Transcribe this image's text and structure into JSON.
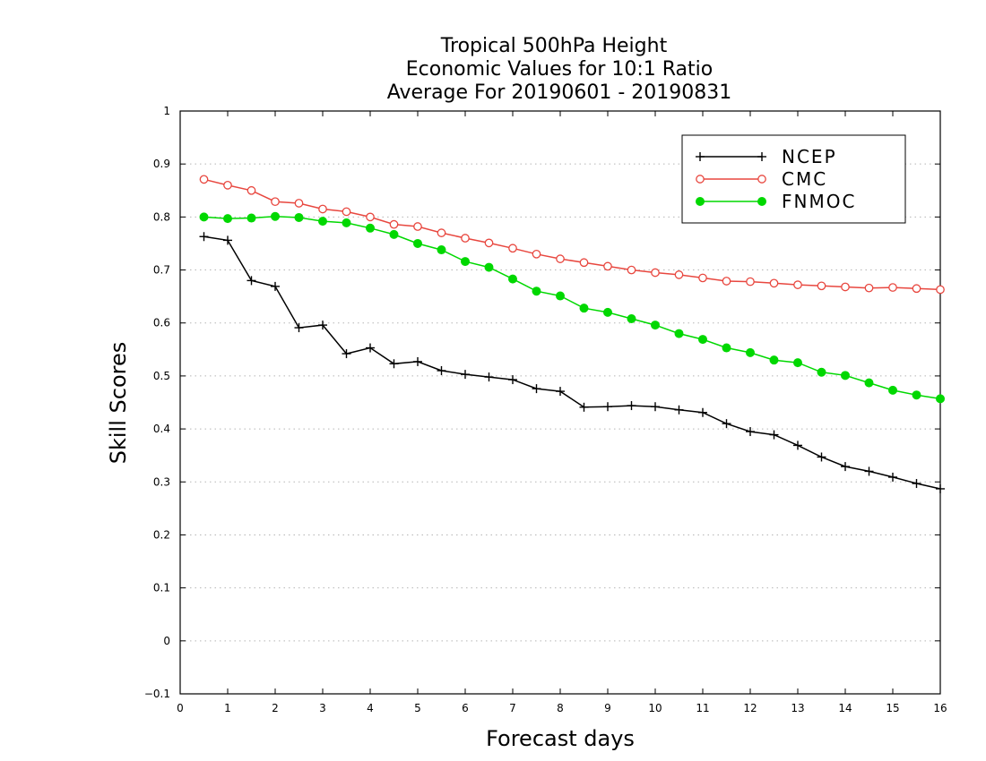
{
  "chart_data": {
    "type": "line",
    "title_lines": [
      "Tropical 500hPa Height",
      "Economic Values for 10:1 Ratio",
      "Average For 20190601 - 20190831"
    ],
    "xlabel": "Forecast days",
    "ylabel": "Skill Scores",
    "xlim": [
      0,
      16
    ],
    "ylim": [
      -0.1,
      1
    ],
    "xticks": [
      "0",
      "1",
      "2",
      "3",
      "4",
      "5",
      "6",
      "7",
      "8",
      "9",
      "10",
      "11",
      "12",
      "13",
      "14",
      "15",
      "16"
    ],
    "yticks": [
      "-0.1",
      "0",
      "0.1",
      "0.2",
      "0.3",
      "0.4",
      "0.5",
      "0.6",
      "0.7",
      "0.8",
      "0.9",
      "1"
    ],
    "grid": true,
    "legend_position": "top-right",
    "x": [
      0.5,
      1,
      1.5,
      2,
      2.5,
      3,
      3.5,
      4,
      4.5,
      5,
      5.5,
      6,
      6.5,
      7,
      7.5,
      8,
      8.5,
      9,
      9.5,
      10,
      10.5,
      11,
      11.5,
      12,
      12.5,
      13,
      13.5,
      14,
      14.5,
      15,
      15.5,
      16
    ],
    "series": [
      {
        "name": "NCEP",
        "color": "#000000",
        "marker": "plus",
        "values": [
          0.763,
          0.756,
          0.68,
          0.669,
          0.591,
          0.596,
          0.542,
          0.553,
          0.523,
          0.527,
          0.51,
          0.503,
          0.498,
          0.493,
          0.476,
          0.471,
          0.441,
          0.442,
          0.444,
          0.442,
          0.436,
          0.431,
          0.41,
          0.395,
          0.389,
          0.369,
          0.347,
          0.329,
          0.32,
          0.309,
          0.297,
          0.287
        ]
      },
      {
        "name": "CMC",
        "color": "#e8473f",
        "marker": "open-circle",
        "values": [
          0.871,
          0.86,
          0.85,
          0.829,
          0.826,
          0.815,
          0.81,
          0.8,
          0.786,
          0.782,
          0.77,
          0.76,
          0.751,
          0.741,
          0.73,
          0.721,
          0.714,
          0.707,
          0.7,
          0.695,
          0.691,
          0.685,
          0.679,
          0.678,
          0.675,
          0.672,
          0.67,
          0.668,
          0.666,
          0.667,
          0.665,
          0.663
        ]
      },
      {
        "name": "FNMOC",
        "color": "#00d800",
        "marker": "filled-circle",
        "values": [
          0.8,
          0.797,
          0.798,
          0.801,
          0.799,
          0.792,
          0.789,
          0.779,
          0.767,
          0.75,
          0.738,
          0.716,
          0.705,
          0.683,
          0.66,
          0.651,
          0.628,
          0.62,
          0.608,
          0.596,
          0.58,
          0.569,
          0.553,
          0.544,
          0.53,
          0.525,
          0.507,
          0.501,
          0.487,
          0.473,
          0.464,
          0.457
        ]
      }
    ]
  }
}
